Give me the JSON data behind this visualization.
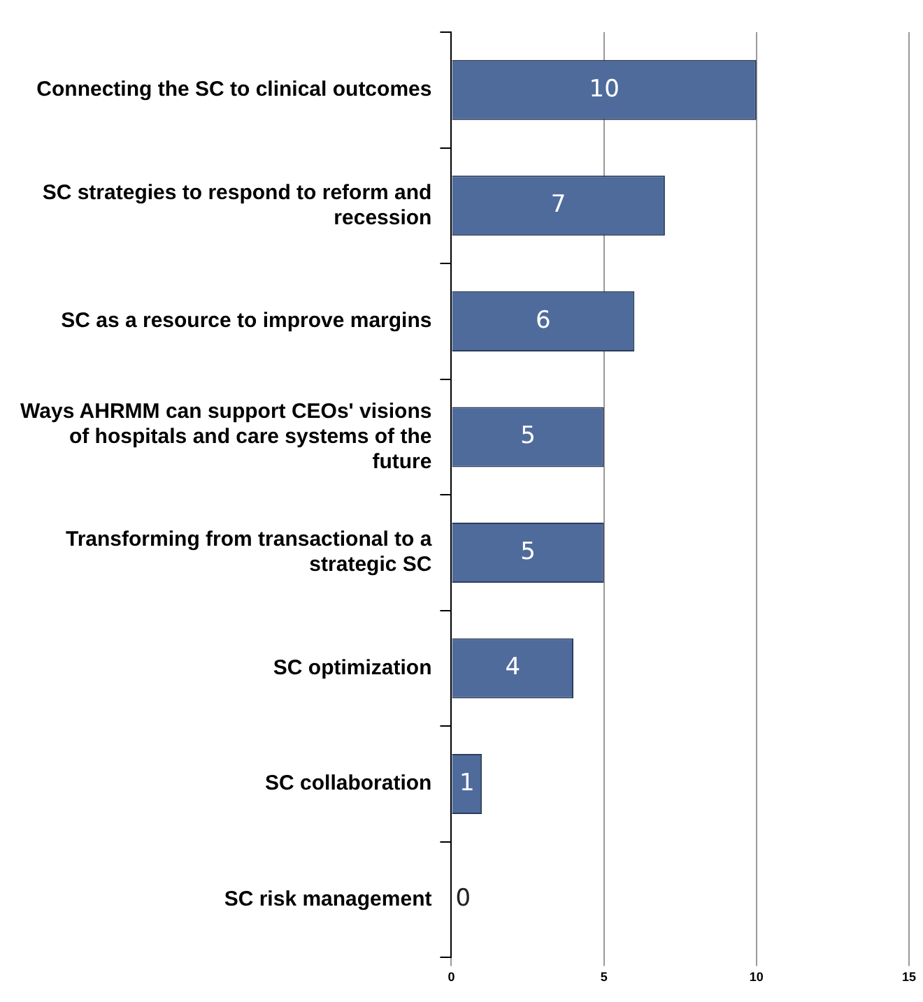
{
  "chart_data": {
    "type": "bar",
    "orientation": "horizontal",
    "categories": [
      "Connecting the SC to clinical outcomes",
      "SC strategies to respond to reform and recession",
      "SC as a resource to improve margins",
      "Ways AHRMM can support CEOs' visions of hospitals and care systems of the future",
      "Transforming from transactional to a strategic SC",
      "SC optimization",
      "SC collaboration",
      "SC risk management"
    ],
    "values": [
      10,
      7,
      6,
      5,
      5,
      4,
      1,
      0
    ],
    "color": "#4f6b9b",
    "xlim": [
      0,
      15
    ],
    "xticks": [
      0,
      5,
      10,
      15
    ],
    "grid": "x",
    "data_labels": true,
    "legend": false
  }
}
